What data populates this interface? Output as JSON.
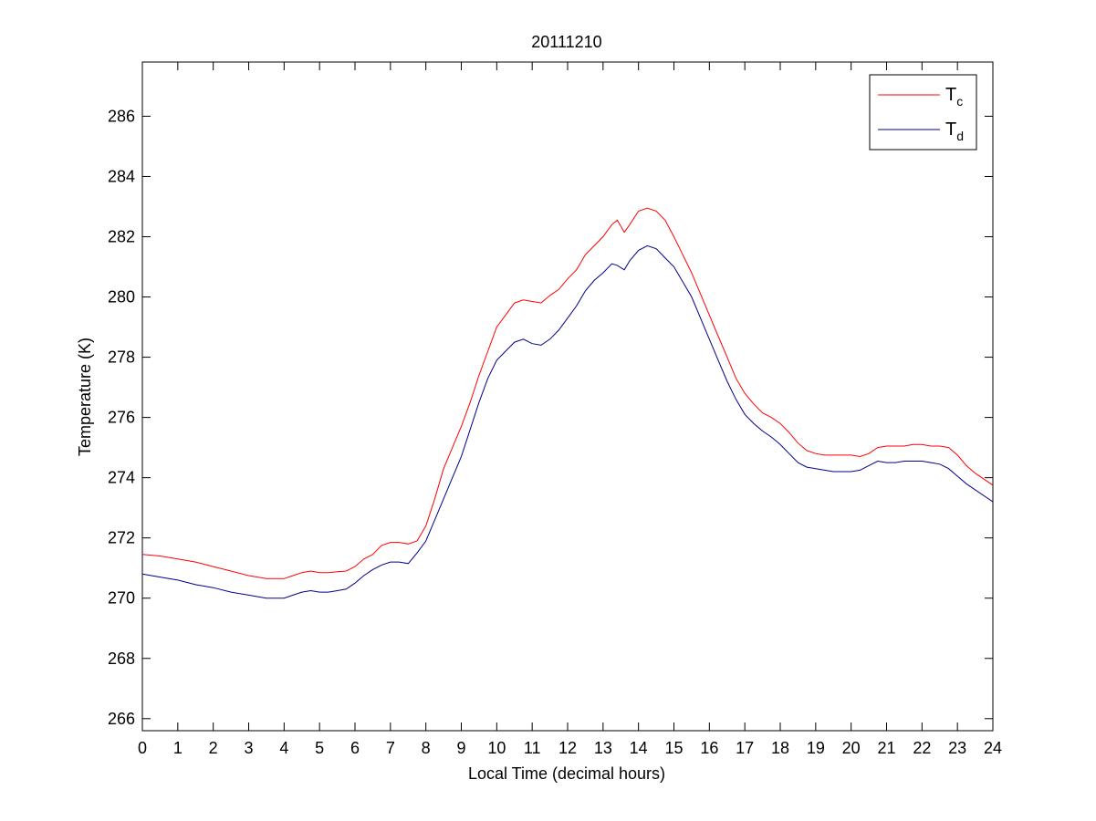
{
  "chart_data": {
    "type": "line",
    "title": "20111210",
    "xlabel": "Local Time (decimal hours)",
    "ylabel": "Temperature (K)",
    "xlim": [
      0,
      24
    ],
    "ylim": [
      265.6,
      287.8
    ],
    "xticks": [
      0,
      1,
      2,
      3,
      4,
      5,
      6,
      7,
      8,
      9,
      10,
      11,
      12,
      13,
      14,
      15,
      16,
      17,
      18,
      19,
      20,
      21,
      22,
      23,
      24
    ],
    "yticks": [
      266,
      268,
      270,
      272,
      274,
      276,
      278,
      280,
      282,
      284,
      286
    ],
    "grid": false,
    "legend_position": "top-right",
    "series": [
      {
        "name": "Tc",
        "name_main": "T",
        "name_sub": "c",
        "color": "#ff0000",
        "x": [
          0,
          0.5,
          1,
          1.5,
          2,
          2.5,
          3,
          3.5,
          4,
          4.25,
          4.5,
          4.75,
          5,
          5.25,
          5.5,
          5.75,
          6,
          6.25,
          6.5,
          6.75,
          7,
          7.25,
          7.5,
          7.75,
          8,
          8.25,
          8.5,
          8.75,
          9,
          9.25,
          9.5,
          9.75,
          10,
          10.25,
          10.5,
          10.75,
          11,
          11.25,
          11.5,
          11.75,
          12,
          12.25,
          12.5,
          12.75,
          13,
          13.25,
          13.4,
          13.6,
          13.75,
          14,
          14.25,
          14.5,
          14.75,
          15,
          15.25,
          15.5,
          15.75,
          16,
          16.25,
          16.5,
          16.75,
          17,
          17.25,
          17.5,
          17.75,
          18,
          18.25,
          18.5,
          18.75,
          19,
          19.25,
          19.5,
          19.75,
          20,
          20.25,
          20.5,
          20.75,
          21,
          21.25,
          21.5,
          21.75,
          22,
          22.25,
          22.5,
          22.75,
          23,
          23.25,
          23.5,
          23.75,
          24
        ],
        "y": [
          271.45,
          271.4,
          271.3,
          271.2,
          271.05,
          270.9,
          270.75,
          270.65,
          270.65,
          270.75,
          270.85,
          270.9,
          270.85,
          270.85,
          270.88,
          270.9,
          271.05,
          271.3,
          271.45,
          271.75,
          271.85,
          271.85,
          271.8,
          271.9,
          272.4,
          273.3,
          274.3,
          275.0,
          275.7,
          276.5,
          277.4,
          278.2,
          279.0,
          279.4,
          279.8,
          279.9,
          279.85,
          279.8,
          280.05,
          280.25,
          280.6,
          280.9,
          281.4,
          281.7,
          282.0,
          282.4,
          282.55,
          282.15,
          282.4,
          282.85,
          282.95,
          282.85,
          282.55,
          282.0,
          281.4,
          280.8,
          280.1,
          279.4,
          278.7,
          278.0,
          277.3,
          276.8,
          276.45,
          276.15,
          276.0,
          275.8,
          275.5,
          275.15,
          274.9,
          274.8,
          274.75,
          274.75,
          274.75,
          274.75,
          274.7,
          274.8,
          275.0,
          275.05,
          275.05,
          275.05,
          275.1,
          275.1,
          275.05,
          275.05,
          275.0,
          274.75,
          274.4,
          274.15,
          273.95,
          273.75
        ]
      },
      {
        "name": "Td",
        "name_main": "T",
        "name_sub": "d",
        "color": "#00008b",
        "x": [
          0,
          0.5,
          1,
          1.5,
          2,
          2.5,
          3,
          3.5,
          4,
          4.25,
          4.5,
          4.75,
          5,
          5.25,
          5.5,
          5.75,
          6,
          6.25,
          6.5,
          6.75,
          7,
          7.25,
          7.5,
          7.75,
          8,
          8.25,
          8.5,
          8.75,
          9,
          9.25,
          9.5,
          9.75,
          10,
          10.25,
          10.5,
          10.75,
          11,
          11.25,
          11.5,
          11.75,
          12,
          12.25,
          12.5,
          12.75,
          13,
          13.25,
          13.4,
          13.6,
          13.75,
          14,
          14.25,
          14.5,
          14.75,
          15,
          15.25,
          15.5,
          15.75,
          16,
          16.25,
          16.5,
          16.75,
          17,
          17.25,
          17.5,
          17.75,
          18,
          18.25,
          18.5,
          18.75,
          19,
          19.25,
          19.5,
          19.75,
          20,
          20.25,
          20.5,
          20.75,
          21,
          21.25,
          21.5,
          21.75,
          22,
          22.25,
          22.5,
          22.75,
          23,
          23.25,
          23.5,
          23.75,
          24
        ],
        "y": [
          270.8,
          270.7,
          270.6,
          270.45,
          270.35,
          270.2,
          270.1,
          270.0,
          270.0,
          270.1,
          270.2,
          270.25,
          270.2,
          270.2,
          270.25,
          270.3,
          270.5,
          270.75,
          270.95,
          271.1,
          271.2,
          271.2,
          271.15,
          271.5,
          271.9,
          272.6,
          273.3,
          274.0,
          274.7,
          275.6,
          276.5,
          277.3,
          277.9,
          278.2,
          278.5,
          278.6,
          278.45,
          278.4,
          278.6,
          278.9,
          279.3,
          279.7,
          280.2,
          280.55,
          280.8,
          281.1,
          281.05,
          280.9,
          281.2,
          281.55,
          281.7,
          281.6,
          281.3,
          281.0,
          280.5,
          280.0,
          279.3,
          278.6,
          277.9,
          277.2,
          276.6,
          276.1,
          275.8,
          275.55,
          275.35,
          275.1,
          274.8,
          274.5,
          274.35,
          274.3,
          274.25,
          274.2,
          274.2,
          274.2,
          274.25,
          274.4,
          274.55,
          274.5,
          274.5,
          274.55,
          274.55,
          274.55,
          274.5,
          274.45,
          274.3,
          274.05,
          273.8,
          273.6,
          273.4,
          273.2
        ]
      }
    ]
  }
}
